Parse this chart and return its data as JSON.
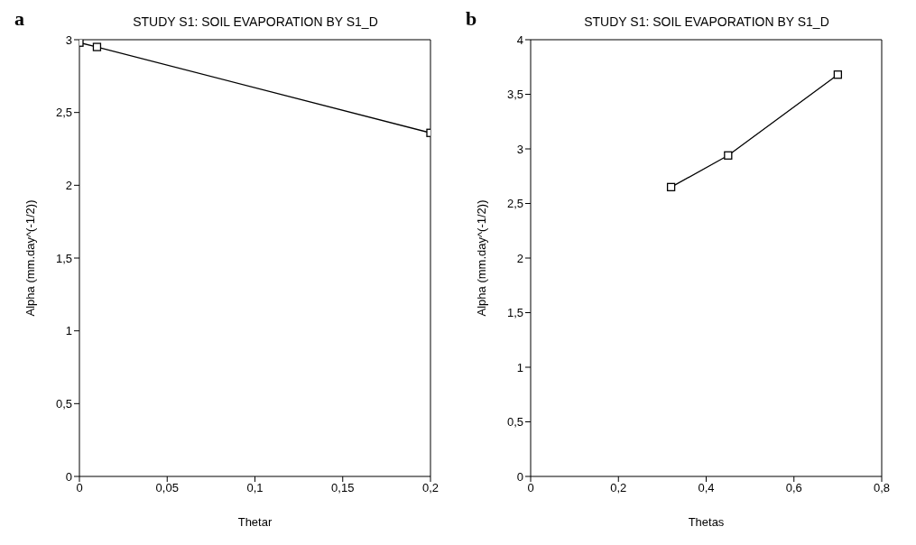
{
  "chart_data": [
    {
      "type": "line",
      "title": "STUDY S1: SOIL EVAPORATION BY S1_D",
      "xlabel": "Thetar",
      "ylabel": "Alpha (mm.day^(-1/2))",
      "annotations": [
        "a"
      ],
      "x": [
        0,
        0.01,
        0.2
      ],
      "series": [
        {
          "color": "#000000",
          "values": [
            2.98,
            2.95,
            2.36
          ]
        }
      ],
      "xlim": [
        0,
        0.2
      ],
      "xticks": [
        0,
        {
          "value": 0.05,
          "label": "0,05"
        },
        {
          "value": 0.1,
          "label": "0,1"
        },
        {
          "value": 0.15,
          "label": "0,15"
        },
        {
          "value": 0.2,
          "label": "0,2"
        }
      ],
      "ylim": [
        0,
        3
      ],
      "yticks": [
        0,
        {
          "value": 0.5,
          "label": "0,5"
        },
        1,
        {
          "value": 1.5,
          "label": "1,5"
        },
        2,
        {
          "value": 2.5,
          "label": "2,5"
        },
        3
      ],
      "grid": false,
      "legend": false,
      "marker": "square",
      "line_style": "solid"
    },
    {
      "type": "line",
      "title": "STUDY S1: SOIL EVAPORATION BY S1_D",
      "xlabel": "Thetas",
      "ylabel": "Alpha (mm.day^(-1/2))",
      "annotations": [
        "b"
      ],
      "x": [
        0.32,
        0.45,
        0.7
      ],
      "series": [
        {
          "color": "#000000",
          "values": [
            2.65,
            2.94,
            3.68
          ]
        }
      ],
      "xlim": [
        0,
        0.8
      ],
      "xticks": [
        0,
        {
          "value": 0.2,
          "label": "0,2"
        },
        {
          "value": 0.4,
          "label": "0,4"
        },
        {
          "value": 0.6,
          "label": "0,6"
        },
        {
          "value": 0.8,
          "label": "0,8"
        }
      ],
      "ylim": [
        0,
        4
      ],
      "yticks": [
        0,
        {
          "value": 0.5,
          "label": "0,5"
        },
        1,
        {
          "value": 1.5,
          "label": "1,5"
        },
        2,
        {
          "value": 2.5,
          "label": "2,5"
        },
        3,
        {
          "value": 3.5,
          "label": "3,5"
        },
        4
      ],
      "grid": false,
      "legend": false,
      "marker": "square",
      "line_style": "solid"
    }
  ]
}
